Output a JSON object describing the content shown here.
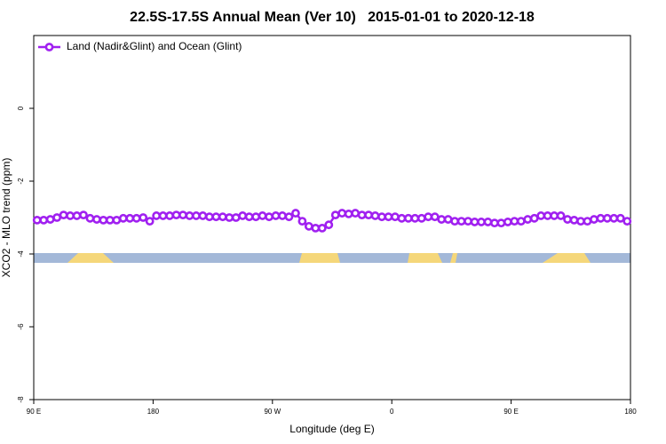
{
  "chart_data": {
    "type": "line",
    "title": "22.5S-17.5S Annual Mean (Ver 10)   2015-01-01 to 2020-12-18",
    "xlabel": "Longitude (deg E)",
    "ylabel": "XCO2 - MLO trend (ppm)",
    "xlim": [
      90,
      540
    ],
    "ylim": [
      -8,
      2
    ],
    "xticks": [
      {
        "value": 90,
        "label": "90 E"
      },
      180,
      {
        "value": 270,
        "label": "90 W"
      },
      {
        "value": 360,
        "label": "0"
      },
      {
        "value": 450,
        "label": "90 E"
      },
      {
        "value": 540,
        "label": "180"
      }
    ],
    "yticks": [
      0,
      -2,
      -4,
      -6,
      -8
    ],
    "legend": "upper left",
    "x": [
      92.5,
      97.5,
      102.5,
      107.5,
      112.5,
      117.5,
      122.5,
      127.5,
      132.5,
      137.5,
      142.5,
      147.5,
      152.5,
      157.5,
      162.5,
      167.5,
      172.5,
      177.5,
      182.5,
      187.5,
      192.5,
      197.5,
      202.5,
      207.5,
      212.5,
      217.5,
      222.5,
      227.5,
      232.5,
      237.5,
      242.5,
      247.5,
      252.5,
      257.5,
      262.5,
      267.5,
      272.5,
      277.5,
      282.5,
      287.5,
      292.5,
      297.5,
      302.5,
      307.5,
      312.5,
      317.5,
      322.5,
      327.5,
      332.5,
      337.5,
      342.5,
      347.5,
      352.5,
      357.5,
      362.5,
      367.5,
      372.5,
      377.5,
      382.5,
      387.5,
      392.5,
      397.5,
      402.5,
      407.5,
      412.5,
      417.5,
      422.5,
      427.5,
      432.5,
      437.5,
      442.5,
      447.5,
      452.5,
      457.5,
      462.5,
      467.5,
      472.5,
      477.5,
      482.5,
      487.5,
      492.5,
      497.5,
      502.5,
      507.5,
      512.5,
      517.5,
      522.5,
      527.5,
      532.5,
      537.5
    ],
    "series": [
      {
        "name": "Land (Nadir&Glint) and Ocean (Glint)",
        "color": "#a020f0",
        "values": [
          -3.07,
          -3.07,
          -3.05,
          -3.0,
          -2.93,
          -2.95,
          -2.95,
          -2.93,
          -3.02,
          -3.05,
          -3.07,
          -3.07,
          -3.07,
          -3.02,
          -3.02,
          -3.02,
          -3.0,
          -3.1,
          -2.95,
          -2.95,
          -2.95,
          -2.93,
          -2.93,
          -2.95,
          -2.95,
          -2.95,
          -2.98,
          -2.98,
          -2.98,
          -3.0,
          -3.0,
          -2.95,
          -2.98,
          -2.98,
          -2.95,
          -2.98,
          -2.95,
          -2.95,
          -2.98,
          -2.88,
          -3.1,
          -3.24,
          -3.29,
          -3.29,
          -3.2,
          -2.93,
          -2.88,
          -2.9,
          -2.88,
          -2.93,
          -2.93,
          -2.95,
          -2.98,
          -2.98,
          -2.98,
          -3.02,
          -3.02,
          -3.02,
          -3.02,
          -2.98,
          -2.98,
          -3.05,
          -3.05,
          -3.1,
          -3.1,
          -3.1,
          -3.12,
          -3.12,
          -3.12,
          -3.15,
          -3.15,
          -3.12,
          -3.1,
          -3.1,
          -3.05,
          -3.02,
          -2.95,
          -2.95,
          -2.95,
          -2.95,
          -3.05,
          -3.07,
          -3.1,
          -3.1,
          -3.05,
          -3.02,
          -3.02,
          -3.02,
          -3.02,
          -3.1
        ]
      }
    ]
  }
}
